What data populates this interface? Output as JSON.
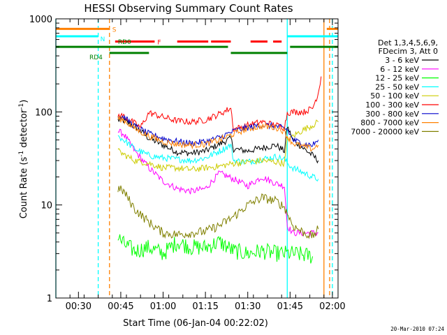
{
  "chart_data": {
    "type": "line",
    "title": "HESSI Observing Summary Count Rates",
    "xlabel": "Start Time (06-Jan-04 00:22:02)",
    "ylabel": "Count Rate (s-1 detector-1)",
    "ylabel_parts": [
      "Count Rate (s",
      "-1",
      " detector",
      "-1",
      ")"
    ],
    "yscale": "log",
    "xlim": [
      "00:22:00",
      "02:02:00"
    ],
    "ylim": [
      1,
      1000
    ],
    "x_ticks": [
      "00:30",
      "00:45",
      "01:00",
      "01:15",
      "01:30",
      "01:45",
      "02:00"
    ],
    "y_ticks": [
      "1",
      "10",
      "100",
      "1000"
    ],
    "legend_header": [
      "Det 1,3,4,5,6,9,",
      "FDecim 3, Att 0"
    ],
    "legend_position": "right",
    "timestamp": "20-Mar-2010 07:24",
    "series": [
      {
        "name": "3 - 6 keV",
        "color": "#000000",
        "x": [
          "00:44:00",
          "00:46:00",
          "00:50:00",
          "00:55:00",
          "01:00:00",
          "01:05:00",
          "01:10:00",
          "01:15:00",
          "01:20:00",
          "01:24:00",
          "01:25:00",
          "01:30:00",
          "01:35:00",
          "01:40:00",
          "01:43:00",
          "01:44:00",
          "01:46:00",
          "01:50:00",
          "01:53:00",
          "01:55:00"
        ],
        "y": [
          82,
          80,
          70,
          52,
          44,
          37,
          36,
          38,
          45,
          52,
          40,
          38,
          41,
          44,
          38,
          70,
          50,
          40,
          34,
          30
        ]
      },
      {
        "name": "6 - 12 keV",
        "color": "#ff00ff",
        "x": [
          "00:44:00",
          "00:46:00",
          "00:50:00",
          "00:55:00",
          "01:00:00",
          "01:05:00",
          "01:10:00",
          "01:15:00",
          "01:20:00",
          "01:25:00",
          "01:30:00",
          "01:35:00",
          "01:40:00",
          "01:43:00",
          "01:44:00",
          "01:46:00",
          "01:50:00",
          "01:53:00",
          "01:55:00"
        ],
        "y": [
          62,
          58,
          38,
          25,
          18,
          15,
          14,
          15,
          22,
          19,
          16,
          20,
          17,
          16,
          6,
          5,
          5,
          5,
          5
        ]
      },
      {
        "name": "12 - 25 keV",
        "color": "#00ff00",
        "x": [
          "00:44:00",
          "00:46:00",
          "00:50:00",
          "00:55:00",
          "01:00:00",
          "01:05:00",
          "01:10:00",
          "01:15:00",
          "01:20:00",
          "01:25:00",
          "01:30:00",
          "01:35:00",
          "01:40:00",
          "01:43:00",
          "01:46:00",
          "01:50:00",
          "01:53:00"
        ],
        "y": [
          4.5,
          3.8,
          3.2,
          3.5,
          3.0,
          4.0,
          3.5,
          3.5,
          4.0,
          3.2,
          3.0,
          3.2,
          3.0,
          3.0,
          3.0,
          2.9,
          2.8
        ]
      },
      {
        "name": "25 - 50 keV",
        "color": "#00ffff",
        "x": [
          "00:44:00",
          "00:46:00",
          "00:50:00",
          "00:55:00",
          "01:00:00",
          "01:05:00",
          "01:10:00",
          "01:15:00",
          "01:20:00",
          "01:24:00",
          "01:25:00",
          "01:30:00",
          "01:35:00",
          "01:40:00",
          "01:43:00",
          "01:44:00",
          "01:46:00",
          "01:50:00",
          "01:53:00",
          "01:55:00"
        ],
        "y": [
          55,
          50,
          40,
          34,
          32,
          31,
          30,
          32,
          38,
          44,
          30,
          29,
          31,
          33,
          31,
          28,
          25,
          22,
          20,
          19
        ]
      },
      {
        "name": "50 - 100 keV",
        "color": "#cccc00",
        "x": [
          "00:44:00",
          "00:46:00",
          "00:50:00",
          "00:55:00",
          "01:00:00",
          "01:05:00",
          "01:10:00",
          "01:15:00",
          "01:20:00",
          "01:25:00",
          "01:30:00",
          "01:35:00",
          "01:40:00",
          "01:43:00",
          "01:44:00",
          "01:46:00",
          "01:50:00",
          "01:53:00",
          "01:55:00"
        ],
        "y": [
          38,
          35,
          30,
          28,
          25,
          25,
          24,
          25,
          26,
          28,
          29,
          30,
          29,
          28,
          50,
          55,
          65,
          72,
          78
        ]
      },
      {
        "name": "100 - 300 keV",
        "color": "#ff0000",
        "x": [
          "00:44:00",
          "00:46:00",
          "00:50:00",
          "00:52:00",
          "00:55:00",
          "01:00:00",
          "01:05:00",
          "01:10:00",
          "01:15:00",
          "01:20:00",
          "01:24:00",
          "01:25:00",
          "01:30:00",
          "01:35:00",
          "01:40:00",
          "01:43:00",
          "01:44:00",
          "01:46:00",
          "01:50:00",
          "01:53:00",
          "01:55:00",
          "01:56:00"
        ],
        "y": [
          92,
          90,
          75,
          68,
          98,
          88,
          80,
          78,
          82,
          95,
          110,
          65,
          72,
          78,
          72,
          68,
          98,
          100,
          100,
          110,
          160,
          240
        ]
      },
      {
        "name": "300 - 800 keV",
        "color": "#0000cc",
        "x": [
          "00:44:00",
          "00:46:00",
          "00:50:00",
          "00:55:00",
          "01:00:00",
          "01:05:00",
          "01:10:00",
          "01:15:00",
          "01:20:00",
          "01:25:00",
          "01:30:00",
          "01:35:00",
          "01:40:00",
          "01:43:00",
          "01:44:00",
          "01:46:00",
          "01:50:00",
          "01:53:00",
          "01:55:00"
        ],
        "y": [
          90,
          88,
          70,
          58,
          52,
          48,
          46,
          48,
          53,
          62,
          68,
          72,
          70,
          66,
          65,
          50,
          45,
          44,
          50
        ]
      },
      {
        "name": "800 - 7000 keV",
        "color": "#ff8000",
        "x": [
          "00:44:00",
          "00:46:00",
          "00:50:00",
          "00:55:00",
          "01:00:00",
          "01:05:00",
          "01:10:00",
          "01:15:00",
          "01:20:00",
          "01:25:00",
          "01:30:00",
          "01:35:00",
          "01:40:00",
          "01:43:00",
          "01:44:00",
          "01:46:00",
          "01:50:00",
          "01:53:00",
          "01:55:00"
        ],
        "y": [
          85,
          82,
          66,
          55,
          48,
          45,
          44,
          45,
          50,
          58,
          66,
          70,
          68,
          62,
          55,
          46,
          42,
          40,
          44
        ]
      },
      {
        "name": "7000 - 20000 keV",
        "color": "#808000",
        "x": [
          "00:44:00",
          "00:46:00",
          "00:50:00",
          "00:55:00",
          "01:00:00",
          "01:05:00",
          "01:10:00",
          "01:15:00",
          "01:20:00",
          "01:25:00",
          "01:30:00",
          "01:35:00",
          "01:40:00",
          "01:43:00",
          "01:46:00",
          "01:50:00",
          "01:53:00",
          "01:55:00"
        ],
        "y": [
          15,
          14,
          9.0,
          6.5,
          5.0,
          4.8,
          5.0,
          5.2,
          6.0,
          7.5,
          10,
          12,
          11,
          9.5,
          6.0,
          5.0,
          4.6,
          5.5
        ]
      }
    ],
    "status_bars": [
      {
        "label": "S",
        "color": "#ff8000",
        "y": 780,
        "segments": [
          [
            "00:22:00",
            "00:41:00"
          ],
          [
            "01:58:00",
            "02:02:00"
          ]
        ]
      },
      {
        "label": "N",
        "color": "#00ffff",
        "y": 650,
        "segments": [
          [
            "00:22:00",
            "00:37:00"
          ],
          [
            "01:44:00",
            "02:02:00"
          ]
        ]
      },
      {
        "label": "F",
        "color": "#ff0000",
        "y": 570,
        "segments": [
          [
            "00:43:00",
            "00:57:00"
          ],
          [
            "01:05:00",
            "01:16:00"
          ],
          [
            "01:17:00",
            "01:24:00"
          ],
          [
            "01:31:00",
            "01:37:00"
          ],
          [
            "01:39:00",
            "01:42:00"
          ]
        ]
      },
      {
        "label": "RD0",
        "color": "#008000",
        "y": 500,
        "segments": [
          [
            "00:22:00",
            "01:23:00"
          ],
          [
            "01:45:00",
            "02:02:00"
          ]
        ]
      },
      {
        "label": "RD4",
        "color": "#008000",
        "y": 430,
        "segments": [
          [
            "00:41:00",
            "00:55:00"
          ],
          [
            "01:24:00",
            "01:44:00"
          ]
        ]
      }
    ],
    "vertical_lines": [
      {
        "color": "#00ffff",
        "style": "solid",
        "x": "00:22:00"
      },
      {
        "color": "#00ffff",
        "style": "dashed",
        "x": "00:37:00"
      },
      {
        "color": "#ff8000",
        "style": "dashed",
        "x": "00:41:00"
      },
      {
        "color": "#00ffff",
        "style": "solid",
        "x": "01:44:00"
      },
      {
        "color": "#ff8000",
        "style": "solid",
        "x": "01:57:00"
      },
      {
        "color": "#ff8000",
        "style": "dashed",
        "x": "01:59:00"
      },
      {
        "color": "#00ffff",
        "style": "dashed",
        "x": "02:00:00"
      }
    ]
  }
}
